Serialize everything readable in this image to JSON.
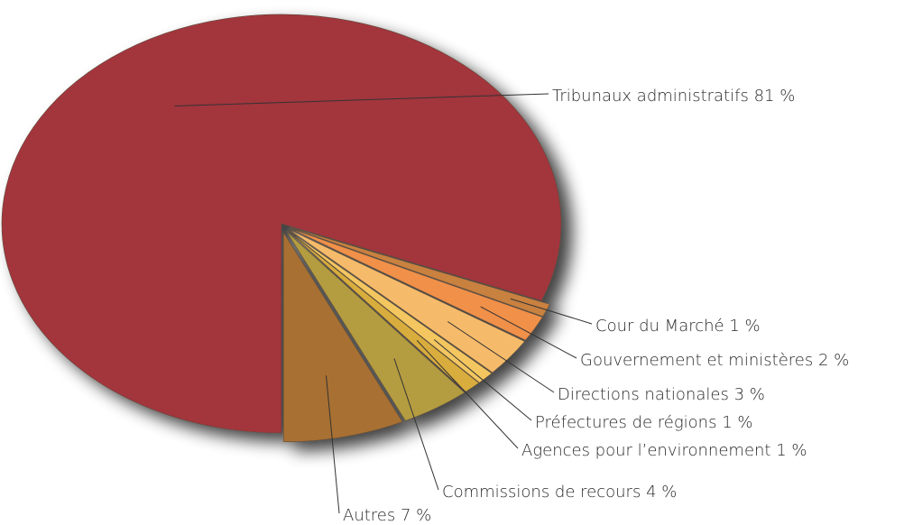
{
  "chart_data": {
    "type": "pie",
    "categories": [
      "Tribunaux administratifs",
      "Cour du Marché",
      "Gouvernement et ministères",
      "Directions nationales",
      "Préfectures de régions",
      "Agences pour l’environnement",
      "Commissions de recours",
      "Autres"
    ],
    "values": [
      81,
      1,
      2,
      3,
      1,
      1,
      4,
      7
    ],
    "value_labels": [
      "81 %",
      "1 %",
      "2 %",
      "3 %",
      "1 %",
      "1 %",
      "4 %",
      "7 %"
    ],
    "colors": [
      "#a3363d",
      "#c9813f",
      "#f0904a",
      "#f6bb6a",
      "#f3c660",
      "#d9ad3c",
      "#b49c3f",
      "#a86f30"
    ]
  }
}
